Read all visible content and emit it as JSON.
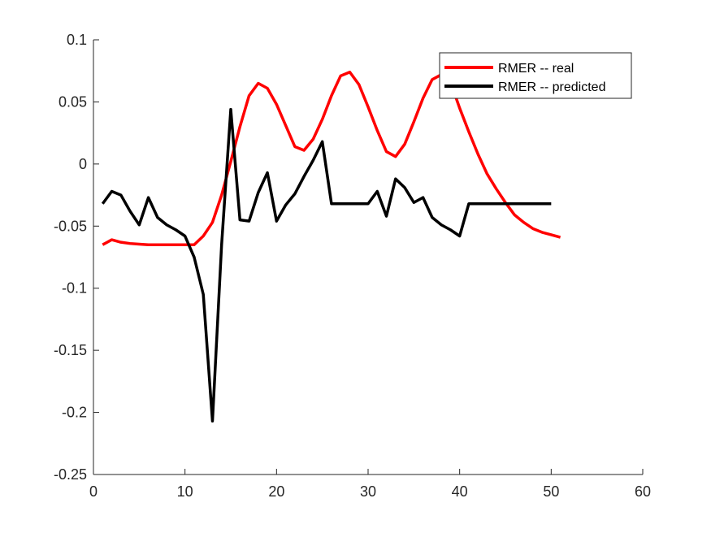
{
  "chart_data": {
    "type": "line",
    "title": "",
    "xlabel": "",
    "ylabel": "",
    "xlim": [
      0,
      60
    ],
    "ylim": [
      -0.25,
      0.1
    ],
    "xticks": [
      0,
      10,
      20,
      30,
      40,
      50,
      60
    ],
    "yticks": [
      -0.25,
      -0.2,
      -0.15,
      -0.1,
      -0.05,
      0,
      0.05,
      0.1
    ],
    "xtick_labels": [
      "0",
      "10",
      "20",
      "30",
      "40",
      "50",
      "60"
    ],
    "ytick_labels": [
      "-0.25",
      "-0.2",
      "-0.15",
      "-0.1",
      "-0.05",
      "0",
      "0.05",
      "0.1"
    ],
    "grid": false,
    "legend_position": "top-right",
    "series": [
      {
        "name": "RMER -- real",
        "color": "#ff0000",
        "x": [
          1,
          2,
          3,
          4,
          5,
          6,
          7,
          8,
          9,
          10,
          11,
          12,
          13,
          14,
          15,
          16,
          17,
          18,
          19,
          20,
          21,
          22,
          23,
          24,
          25,
          26,
          27,
          28,
          29,
          30,
          31,
          32,
          33,
          34,
          35,
          36,
          37,
          38,
          39,
          40,
          41,
          42,
          43,
          44,
          45,
          46,
          47,
          48,
          49,
          50,
          51
        ],
        "y": [
          -0.065,
          -0.061,
          -0.063,
          -0.064,
          -0.0645,
          -0.065,
          -0.065,
          -0.065,
          -0.065,
          -0.065,
          -0.065,
          -0.058,
          -0.047,
          -0.025,
          0.002,
          0.03,
          0.055,
          0.065,
          0.061,
          0.048,
          0.031,
          0.014,
          0.011,
          0.02,
          0.036,
          0.055,
          0.071,
          0.074,
          0.064,
          0.046,
          0.027,
          0.01,
          0.006,
          0.016,
          0.034,
          0.053,
          0.068,
          0.072,
          0.066,
          0.045,
          0.026,
          0.008,
          -0.008,
          -0.02,
          -0.031,
          -0.041,
          -0.047,
          -0.052,
          -0.055,
          -0.057,
          -0.059
        ]
      },
      {
        "name": "RMER -- predicted",
        "color": "#000000",
        "x": [
          1,
          2,
          3,
          4,
          5,
          6,
          7,
          8,
          9,
          10,
          11,
          12,
          13,
          14,
          15,
          16,
          17,
          18,
          19,
          20,
          21,
          22,
          23,
          24,
          25,
          26,
          27,
          28,
          29,
          30,
          31,
          32,
          33,
          34,
          35,
          36,
          37,
          38,
          39,
          40,
          41,
          42,
          43,
          44,
          45,
          46,
          47,
          48,
          49,
          50
        ],
        "y": [
          -0.032,
          -0.022,
          -0.025,
          -0.038,
          -0.049,
          -0.027,
          -0.043,
          -0.049,
          -0.053,
          -0.058,
          -0.075,
          -0.105,
          -0.207,
          -0.065,
          0.044,
          -0.045,
          -0.046,
          -0.023,
          -0.007,
          -0.046,
          -0.033,
          -0.024,
          -0.01,
          0.003,
          0.018,
          -0.032,
          -0.032,
          -0.032,
          -0.032,
          -0.032,
          -0.022,
          -0.042,
          -0.012,
          -0.019,
          -0.031,
          -0.027,
          -0.043,
          -0.049,
          -0.053,
          -0.058,
          -0.032,
          -0.032,
          -0.032,
          -0.032,
          -0.032,
          -0.032,
          -0.032,
          -0.032,
          -0.032,
          -0.032
        ]
      }
    ]
  }
}
